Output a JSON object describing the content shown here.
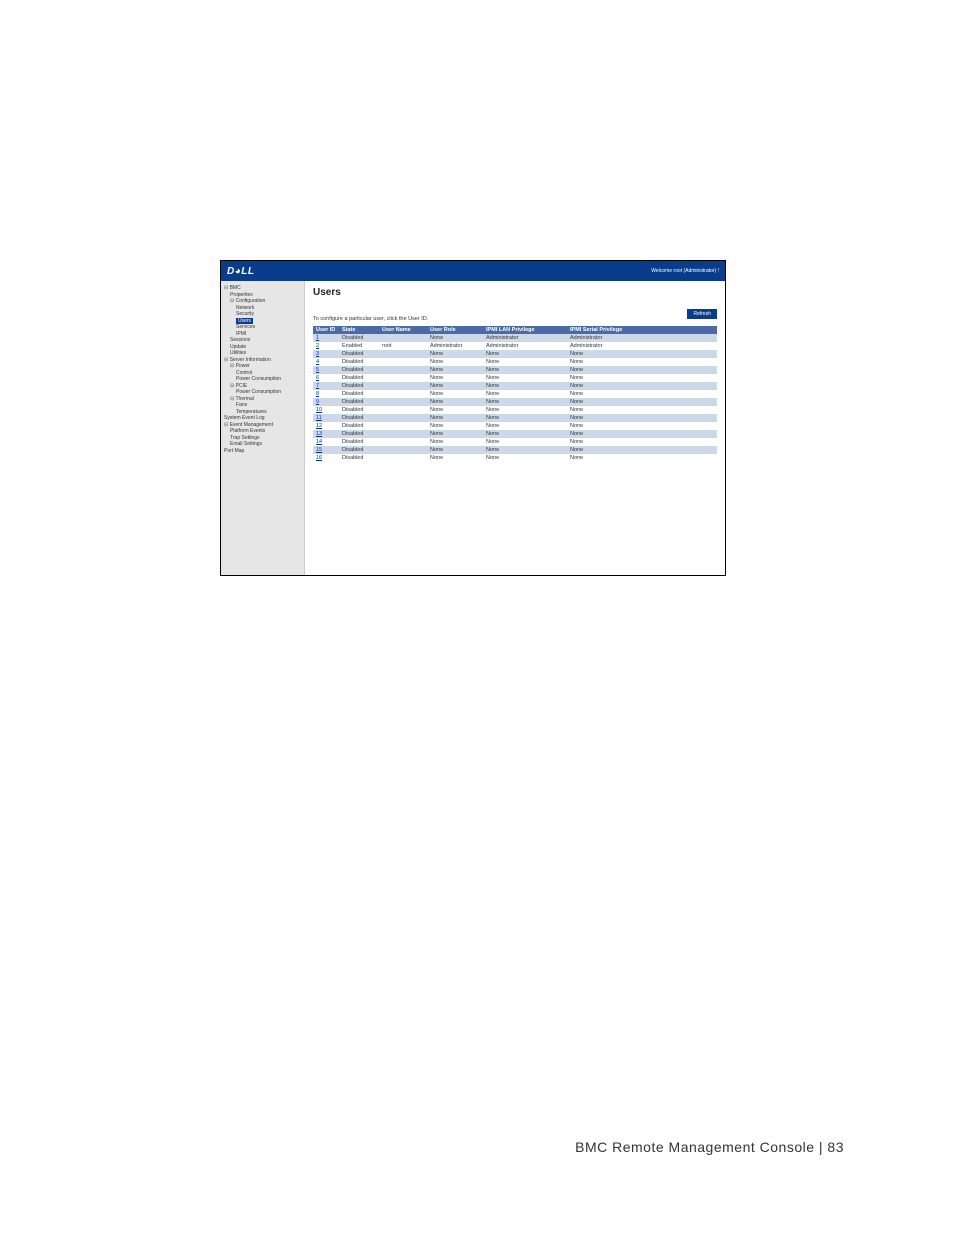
{
  "footer": "BMC  Remote  Management  Console   |   83",
  "topbar": {
    "logo": "D◕LL",
    "welcome": "Welcome root (Administrator) !"
  },
  "sidebar": {
    "items": [
      {
        "label": "BMC",
        "lvl": 0,
        "bullet": true
      },
      {
        "label": "Properties",
        "lvl": 1
      },
      {
        "label": "Configuration",
        "lvl": 1,
        "bullet": true
      },
      {
        "label": "Network",
        "lvl": 2
      },
      {
        "label": "Security",
        "lvl": 2
      },
      {
        "label": "Users",
        "lvl": 2,
        "selected": true
      },
      {
        "label": "Services",
        "lvl": 2
      },
      {
        "label": "IPMI",
        "lvl": 2
      },
      {
        "label": "Sessions",
        "lvl": 1
      },
      {
        "label": "Update",
        "lvl": 1
      },
      {
        "label": "Utilities",
        "lvl": 1
      },
      {
        "label": "Server Information",
        "lvl": 0,
        "bullet": true
      },
      {
        "label": "Power",
        "lvl": 1,
        "bullet": true
      },
      {
        "label": "Control",
        "lvl": 2
      },
      {
        "label": "Power Consumption",
        "lvl": 2
      },
      {
        "label": "PCIE",
        "lvl": 1,
        "bullet": true
      },
      {
        "label": "Power Consumption",
        "lvl": 2
      },
      {
        "label": "Thermal",
        "lvl": 1,
        "bullet": true
      },
      {
        "label": "Fans",
        "lvl": 2
      },
      {
        "label": "Temperatures",
        "lvl": 2
      },
      {
        "label": "System Event Log",
        "lvl": 0
      },
      {
        "label": "Event Management",
        "lvl": 0,
        "bullet": true
      },
      {
        "label": "Platform Events",
        "lvl": 1
      },
      {
        "label": "Trap Settings",
        "lvl": 1
      },
      {
        "label": "Email Settings",
        "lvl": 1
      },
      {
        "label": "Port Map",
        "lvl": 0
      }
    ]
  },
  "main": {
    "title": "Users",
    "refresh": "Refresh",
    "instruction": "To configure a particular user, click the User ID.",
    "columns": [
      "User ID",
      "State",
      "User Name",
      "User Role",
      "IPMI LAN Privilege",
      "IPMI Serial Privilege"
    ],
    "rows": [
      [
        "1",
        "Disabled",
        "",
        "None",
        "Administrator",
        "Administrator"
      ],
      [
        "2",
        "Enabled",
        "root",
        "Administrator",
        "Administrator",
        "Administrator"
      ],
      [
        "3",
        "Disabled",
        "",
        "None",
        "None",
        "None"
      ],
      [
        "4",
        "Disabled",
        "",
        "None",
        "None",
        "None"
      ],
      [
        "5",
        "Disabled",
        "",
        "None",
        "None",
        "None"
      ],
      [
        "6",
        "Disabled",
        "",
        "None",
        "None",
        "None"
      ],
      [
        "7",
        "Disabled",
        "",
        "None",
        "None",
        "None"
      ],
      [
        "8",
        "Disabled",
        "",
        "None",
        "None",
        "None"
      ],
      [
        "9",
        "Disabled",
        "",
        "None",
        "None",
        "None"
      ],
      [
        "10",
        "Disabled",
        "",
        "None",
        "None",
        "None"
      ],
      [
        "11",
        "Disabled",
        "",
        "None",
        "None",
        "None"
      ],
      [
        "12",
        "Disabled",
        "",
        "None",
        "None",
        "None"
      ],
      [
        "13",
        "Disabled",
        "",
        "None",
        "None",
        "None"
      ],
      [
        "14",
        "Disabled",
        "",
        "None",
        "None",
        "None"
      ],
      [
        "15",
        "Disabled",
        "",
        "None",
        "None",
        "None"
      ],
      [
        "16",
        "Disabled",
        "",
        "None",
        "None",
        "None"
      ]
    ]
  },
  "style": {
    "header_bg": "#0a3c8c",
    "row_alt_bg": "#cdd9ea",
    "table_header_bg": "#4a6aa8",
    "sidebar_bg": "#e6e6e6"
  }
}
